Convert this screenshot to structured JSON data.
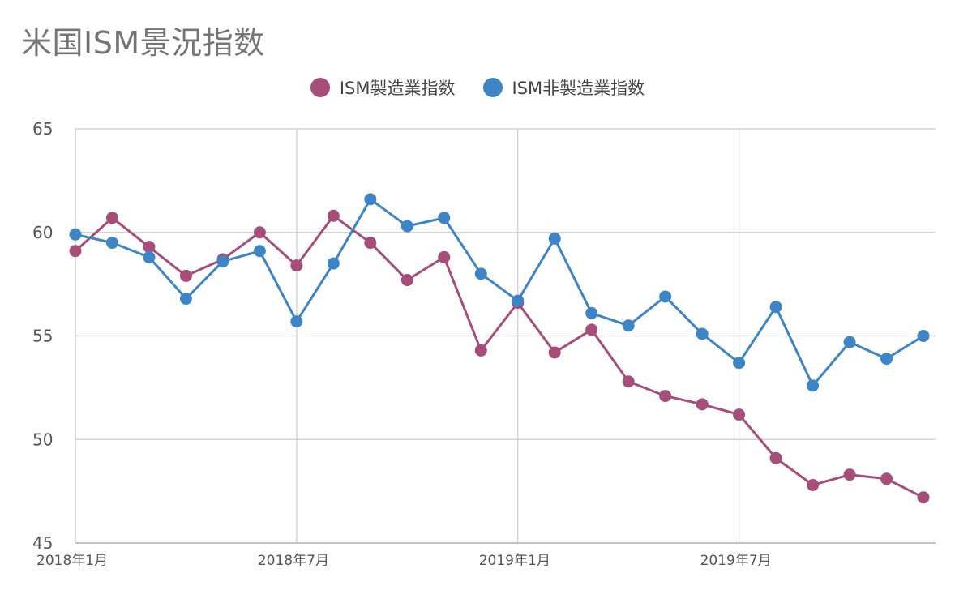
{
  "chart_data": {
    "type": "line",
    "title": "米国ISM景況指数",
    "x": [
      "2018-01",
      "2018-02",
      "2018-03",
      "2018-04",
      "2018-05",
      "2018-06",
      "2018-07",
      "2018-08",
      "2018-09",
      "2018-10",
      "2018-11",
      "2018-12",
      "2019-01",
      "2019-02",
      "2019-03",
      "2019-04",
      "2019-05",
      "2019-06",
      "2019-07",
      "2019-08",
      "2019-09",
      "2019-10",
      "2019-11",
      "2019-12"
    ],
    "x_tick_labels": [
      {
        "x": "2018-01",
        "label": "2018年1月"
      },
      {
        "x": "2018-07",
        "label": "2018年7月"
      },
      {
        "x": "2019-01",
        "label": "2019年1月"
      },
      {
        "x": "2019-07",
        "label": "2019年7月"
      }
    ],
    "ylim": [
      45,
      65
    ],
    "y_ticks": [
      45,
      50,
      55,
      60,
      65
    ],
    "grid": true,
    "legend": "top-center",
    "series": [
      {
        "name": "ISM製造業指数",
        "color": "#a64d79",
        "values": [
          59.1,
          60.7,
          59.3,
          57.9,
          58.7,
          60.0,
          58.4,
          60.8,
          59.5,
          57.7,
          58.8,
          54.3,
          56.6,
          54.2,
          55.3,
          52.8,
          52.1,
          51.7,
          51.2,
          49.1,
          47.8,
          48.3,
          48.1,
          47.2
        ]
      },
      {
        "name": "ISM非製造業指数",
        "color": "#3d85c6",
        "values": [
          59.9,
          59.5,
          58.8,
          56.8,
          58.6,
          59.1,
          55.7,
          58.5,
          61.6,
          60.3,
          60.7,
          58.0,
          56.7,
          59.7,
          56.1,
          55.5,
          56.9,
          55.1,
          53.7,
          56.4,
          52.6,
          54.7,
          53.9,
          55.0
        ]
      }
    ]
  }
}
